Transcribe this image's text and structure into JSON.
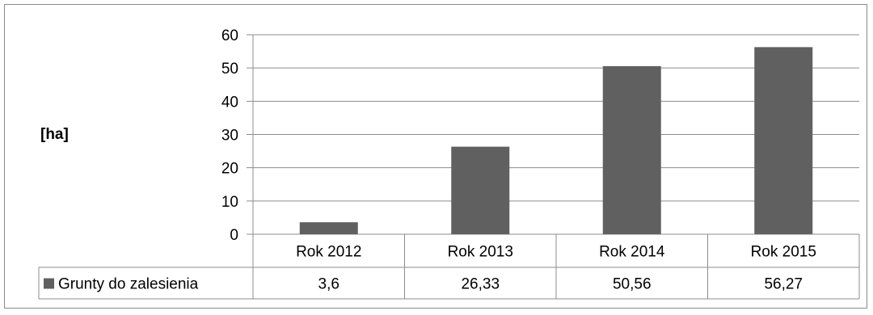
{
  "chart_data": {
    "type": "bar",
    "ylabel": "[ha]",
    "categories": [
      "Rok 2012",
      "Rok 2013",
      "Rok 2014",
      "Rok 2015"
    ],
    "series": [
      {
        "name": "Grunty do zalesienia",
        "values": [
          3.6,
          26.33,
          50.56,
          56.27
        ],
        "value_labels": [
          "3,6",
          "26,33",
          "50,56",
          "56,27"
        ],
        "color": "#606060"
      }
    ],
    "ylim": [
      0,
      60
    ],
    "yticks": [
      0,
      10,
      20,
      30,
      40,
      50,
      60
    ],
    "grid": true,
    "legend": "data-table",
    "data_table": true
  }
}
